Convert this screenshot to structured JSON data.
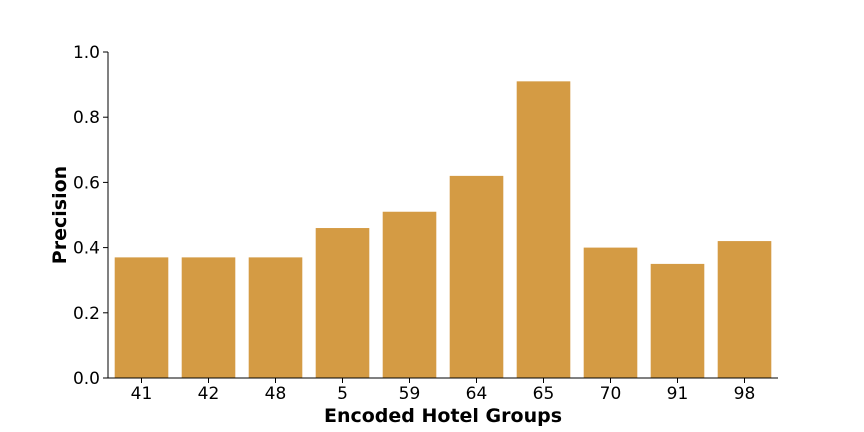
{
  "chart_data": {
    "type": "bar",
    "xlabel": "Encoded Hotel Groups",
    "ylabel": "Precision",
    "categories": [
      "41",
      "42",
      "48",
      "5",
      "59",
      "64",
      "65",
      "70",
      "91",
      "98"
    ],
    "values": [
      0.37,
      0.37,
      0.37,
      0.46,
      0.51,
      0.62,
      0.91,
      0.4,
      0.35,
      0.42
    ],
    "ylim": [
      0,
      1.0
    ],
    "yticks": [
      "0.0",
      "0.2",
      "0.4",
      "0.6",
      "0.8",
      "1.0"
    ],
    "bar_color": "#d49b44",
    "grid": false,
    "legend": "none"
  }
}
